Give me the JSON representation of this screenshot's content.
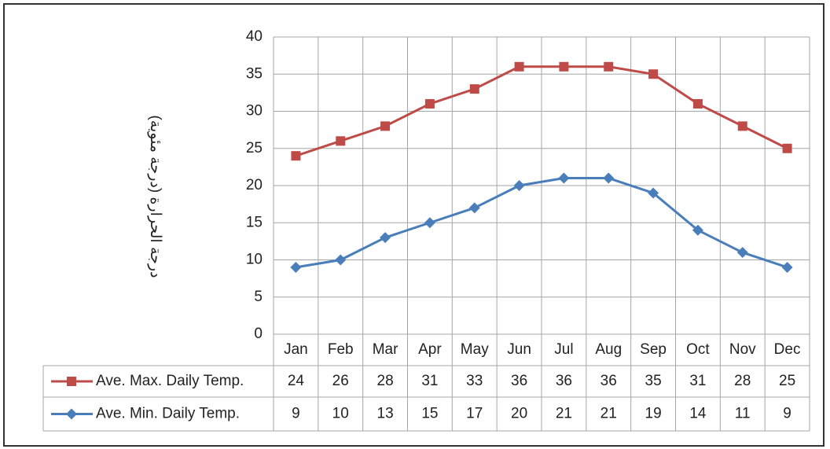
{
  "chart_data": {
    "type": "line",
    "ylabel": "درجة الحرارة (درجة مئوية)",
    "categories": [
      "Jan",
      "Feb",
      "Mar",
      "Apr",
      "May",
      "Jun",
      "Jul",
      "Aug",
      "Sep",
      "Oct",
      "Nov",
      "Dec"
    ],
    "series": [
      {
        "name": "Ave. Max. Daily Temp.",
        "color": "#be4b48",
        "marker": "square",
        "values": [
          24,
          26,
          28,
          31,
          33,
          36,
          36,
          36,
          35,
          31,
          28,
          25
        ]
      },
      {
        "name": "Ave. Min. Daily Temp.",
        "color": "#4a7ebb",
        "marker": "diamond",
        "values": [
          9,
          10,
          13,
          15,
          17,
          20,
          21,
          21,
          19,
          14,
          11,
          9
        ]
      }
    ],
    "ylim": [
      0,
      40
    ],
    "yticks": [
      0,
      5,
      10,
      15,
      20,
      25,
      30,
      35,
      40
    ],
    "grid": true,
    "data_table": true
  }
}
